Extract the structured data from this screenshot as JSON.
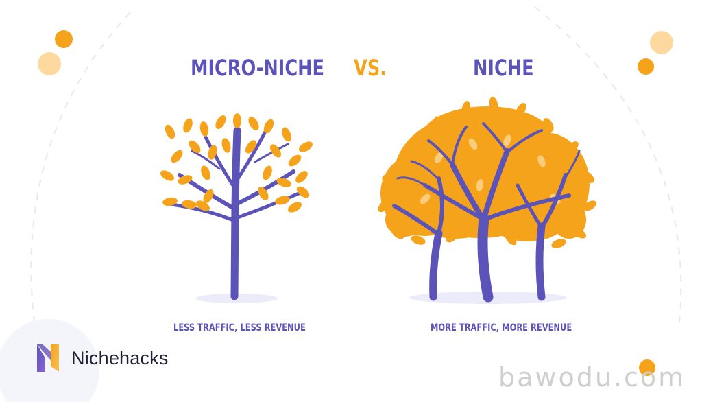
{
  "title": {
    "left": "MICRO-NICHE",
    "vs": "VS.",
    "right": "NICHE"
  },
  "captions": {
    "left": "LESS TRAFFIC, LESS REVENUE",
    "right": "MORE TRAFFIC, MORE REVENUE"
  },
  "brand": {
    "name": "Nichehacks"
  },
  "watermark": "bawodu.com",
  "colors": {
    "purple": "#5b53b8",
    "orange": "#f4a31b",
    "light_orange": "#fdd9a0",
    "ground": "#ecebf9"
  },
  "icons": {
    "left_illustration": "small-tree-icon",
    "right_illustration": "large-tree-icon",
    "logo": "nichehacks-logo-icon"
  }
}
